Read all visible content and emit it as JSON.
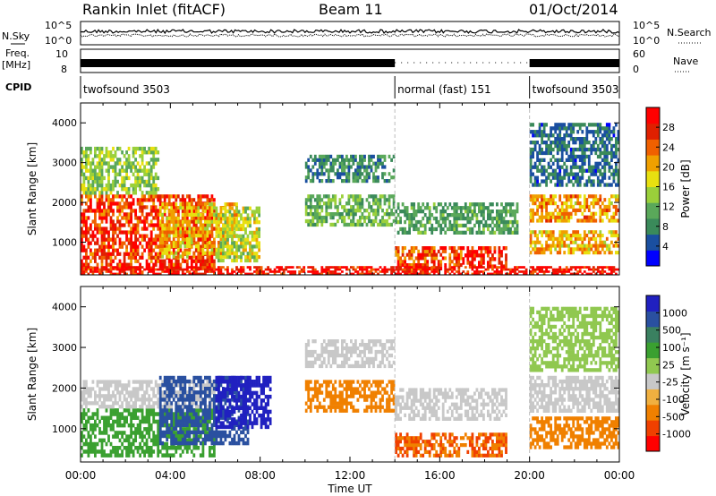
{
  "header": {
    "station": "Rankin Inlet (fitACF)",
    "beam": "Beam 11",
    "date": "01/Oct/2014"
  },
  "panel_noise": {
    "left_label": "N.Sky",
    "left_ticks": [
      "10^5",
      "10^0"
    ],
    "right_ticks": [
      "10^5",
      "10^0"
    ],
    "right_label": "N.Search"
  },
  "panel_freq": {
    "left_label_1": "Freq.",
    "left_label_2": "[MHz]",
    "left_ticks": [
      "10",
      "8"
    ],
    "right_ticks": [
      "60",
      "0"
    ],
    "right_label": "Nave"
  },
  "panel_cpid": {
    "label": "CPID",
    "segments": [
      {
        "name": "twofsound 3503",
        "start_hour": 0,
        "end_hour": 14.0
      },
      {
        "name": "normal (fast) 151",
        "start_hour": 14.0,
        "end_hour": 20.0
      },
      {
        "name": "twofsound 3503",
        "start_hour": 20.0,
        "end_hour": 24
      }
    ]
  },
  "colors": {
    "power_scale": [
      "#0000ff",
      "#1a4fa0",
      "#3a8a5a",
      "#5aa85a",
      "#9ad03a",
      "#e8e010",
      "#f0a000",
      "#f06000",
      "#e02000",
      "#ff0000"
    ],
    "velocity_scale": [
      "#ff0000",
      "#f04000",
      "#f08000",
      "#f0b040",
      "#c8c8c8",
      "#90c850",
      "#3aa030",
      "#3a8060",
      "#2a50a0",
      "#2020c0"
    ]
  },
  "chart_data": [
    {
      "type": "heatmap",
      "name": "power",
      "ylabel": "Slant Range [km]",
      "xlabel": "Time UT",
      "xlim_hours": [
        0,
        24
      ],
      "ylim_km": [
        180,
        4500
      ],
      "x_tick_labels": [
        "00:00",
        "04:00",
        "08:00",
        "12:00",
        "16:00",
        "20:00",
        "00:00"
      ],
      "y_tick_labels": [
        "1000",
        "2000",
        "3000",
        "4000"
      ],
      "colorbar": {
        "label": "Power [dB]",
        "range": [
          0,
          32
        ],
        "tick_labels": [
          "4",
          "8",
          "12",
          "16",
          "20",
          "24",
          "28"
        ]
      },
      "regions": [
        {
          "t": [
            0.0,
            6.0
          ],
          "r": [
            300,
            2200
          ],
          "value": 27
        },
        {
          "t": [
            0.0,
            3.5
          ],
          "r": [
            2200,
            3400
          ],
          "value": 14
        },
        {
          "t": [
            3.5,
            7.0
          ],
          "r": [
            600,
            2000
          ],
          "value": 20
        },
        {
          "t": [
            6.0,
            8.0
          ],
          "r": [
            500,
            1900
          ],
          "value": 16
        },
        {
          "t": [
            10.0,
            14.0
          ],
          "r": [
            1400,
            2200
          ],
          "value": 12
        },
        {
          "t": [
            10.0,
            14.0
          ],
          "r": [
            2500,
            3200
          ],
          "value": 8
        },
        {
          "t": [
            14.0,
            17.0
          ],
          "r": [
            300,
            900
          ],
          "value": 26
        },
        {
          "t": [
            17.0,
            19.0
          ],
          "r": [
            350,
            900
          ],
          "value": 29
        },
        {
          "t": [
            14.0,
            19.5
          ],
          "r": [
            1200,
            2000
          ],
          "value": 10
        },
        {
          "t": [
            20.0,
            24.0
          ],
          "r": [
            1500,
            2200
          ],
          "value": 21
        },
        {
          "t": [
            20.0,
            24.0
          ],
          "r": [
            700,
            1300
          ],
          "value": 20
        },
        {
          "t": [
            20.0,
            24.0
          ],
          "r": [
            2400,
            4000
          ],
          "value": 6
        },
        {
          "t": [
            0.0,
            24.0
          ],
          "r": [
            180,
            400
          ],
          "value": 30
        }
      ]
    },
    {
      "type": "heatmap",
      "name": "velocity",
      "ylabel": "Slant Range [km]",
      "xlabel": "Time UT",
      "xlim_hours": [
        0,
        24
      ],
      "ylim_km": [
        180,
        4500
      ],
      "x_tick_labels": [
        "00:00",
        "04:00",
        "08:00",
        "12:00",
        "16:00",
        "20:00",
        "00:00"
      ],
      "y_tick_labels": [
        "1000",
        "2000",
        "3000",
        "4000"
      ],
      "colorbar": {
        "label": "Velocity [m s⁻¹]",
        "tick_labels": [
          "1000",
          "500",
          "100",
          "25",
          "-25",
          "-100",
          "-500",
          "-1000"
        ]
      },
      "regions": [
        {
          "t": [
            0.0,
            6.0
          ],
          "r": [
            300,
            1500
          ],
          "value": 100
        },
        {
          "t": [
            0.0,
            6.0
          ],
          "r": [
            1500,
            2200
          ],
          "value": 0
        },
        {
          "t": [
            3.5,
            7.5
          ],
          "r": [
            600,
            2300
          ],
          "value": 500
        },
        {
          "t": [
            6.0,
            8.5
          ],
          "r": [
            1000,
            2300
          ],
          "value": 1000
        },
        {
          "t": [
            10.0,
            14.0
          ],
          "r": [
            1400,
            2200
          ],
          "value": -200
        },
        {
          "t": [
            10.0,
            14.0
          ],
          "r": [
            2500,
            3200
          ],
          "value": 0
        },
        {
          "t": [
            14.0,
            19.0
          ],
          "r": [
            300,
            900
          ],
          "value": -300
        },
        {
          "t": [
            14.0,
            19.0
          ],
          "r": [
            1200,
            2000
          ],
          "value": 0
        },
        {
          "t": [
            20.0,
            24.0
          ],
          "r": [
            1400,
            2300
          ],
          "value": 0
        },
        {
          "t": [
            20.0,
            24.0
          ],
          "r": [
            500,
            1300
          ],
          "value": -200
        },
        {
          "t": [
            20.0,
            24.0
          ],
          "r": [
            2400,
            4000
          ],
          "value": 30
        }
      ]
    }
  ]
}
